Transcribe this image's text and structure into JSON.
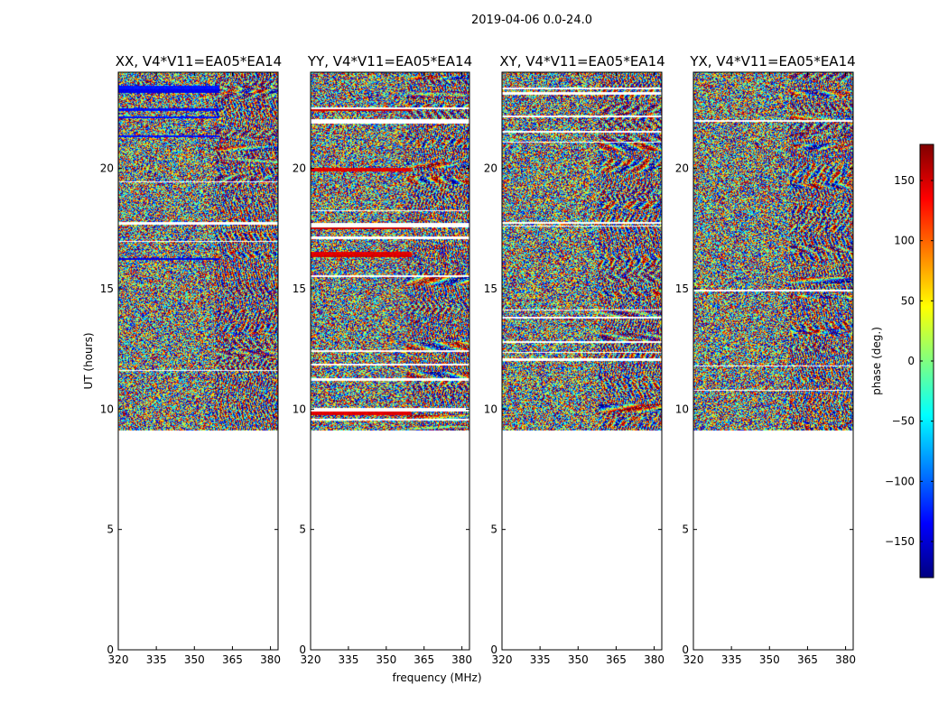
{
  "chart_data": {
    "type": "heatmap",
    "title": "2019-04-06 0.0-24.0",
    "xlabel": "frequency (MHz)",
    "ylabel": "UT (hours)",
    "xlim": [
      320,
      383
    ],
    "ylim": [
      0,
      24
    ],
    "xticks": [
      "320",
      "335",
      "350",
      "365",
      "380"
    ],
    "xtick_values": [
      320,
      335,
      350,
      365,
      380
    ],
    "yticks": [
      "0",
      "5",
      "10",
      "15",
      "20"
    ],
    "ytick_values": [
      0,
      5,
      10,
      15,
      20
    ],
    "data_start_hour": 9.1,
    "panels": [
      {
        "title": "XX, V4*V11=EA05*EA14",
        "pol": "XX"
      },
      {
        "title": "YY, V4*V11=EA05*EA14",
        "pol": "YY"
      },
      {
        "title": "XY, V4*V11=EA05*EA14",
        "pol": "XY"
      },
      {
        "title": "YX, V4*V11=EA05*EA14",
        "pol": "YX"
      }
    ],
    "colorbar": {
      "label": "phase (deg.)",
      "range": [
        -180,
        180
      ],
      "ticks": [
        "150",
        "100",
        "50",
        "0",
        "−50",
        "−100",
        "−150"
      ],
      "tick_values": [
        150,
        100,
        50,
        0,
        -50,
        -100,
        -150
      ],
      "colormap": "jet"
    }
  }
}
